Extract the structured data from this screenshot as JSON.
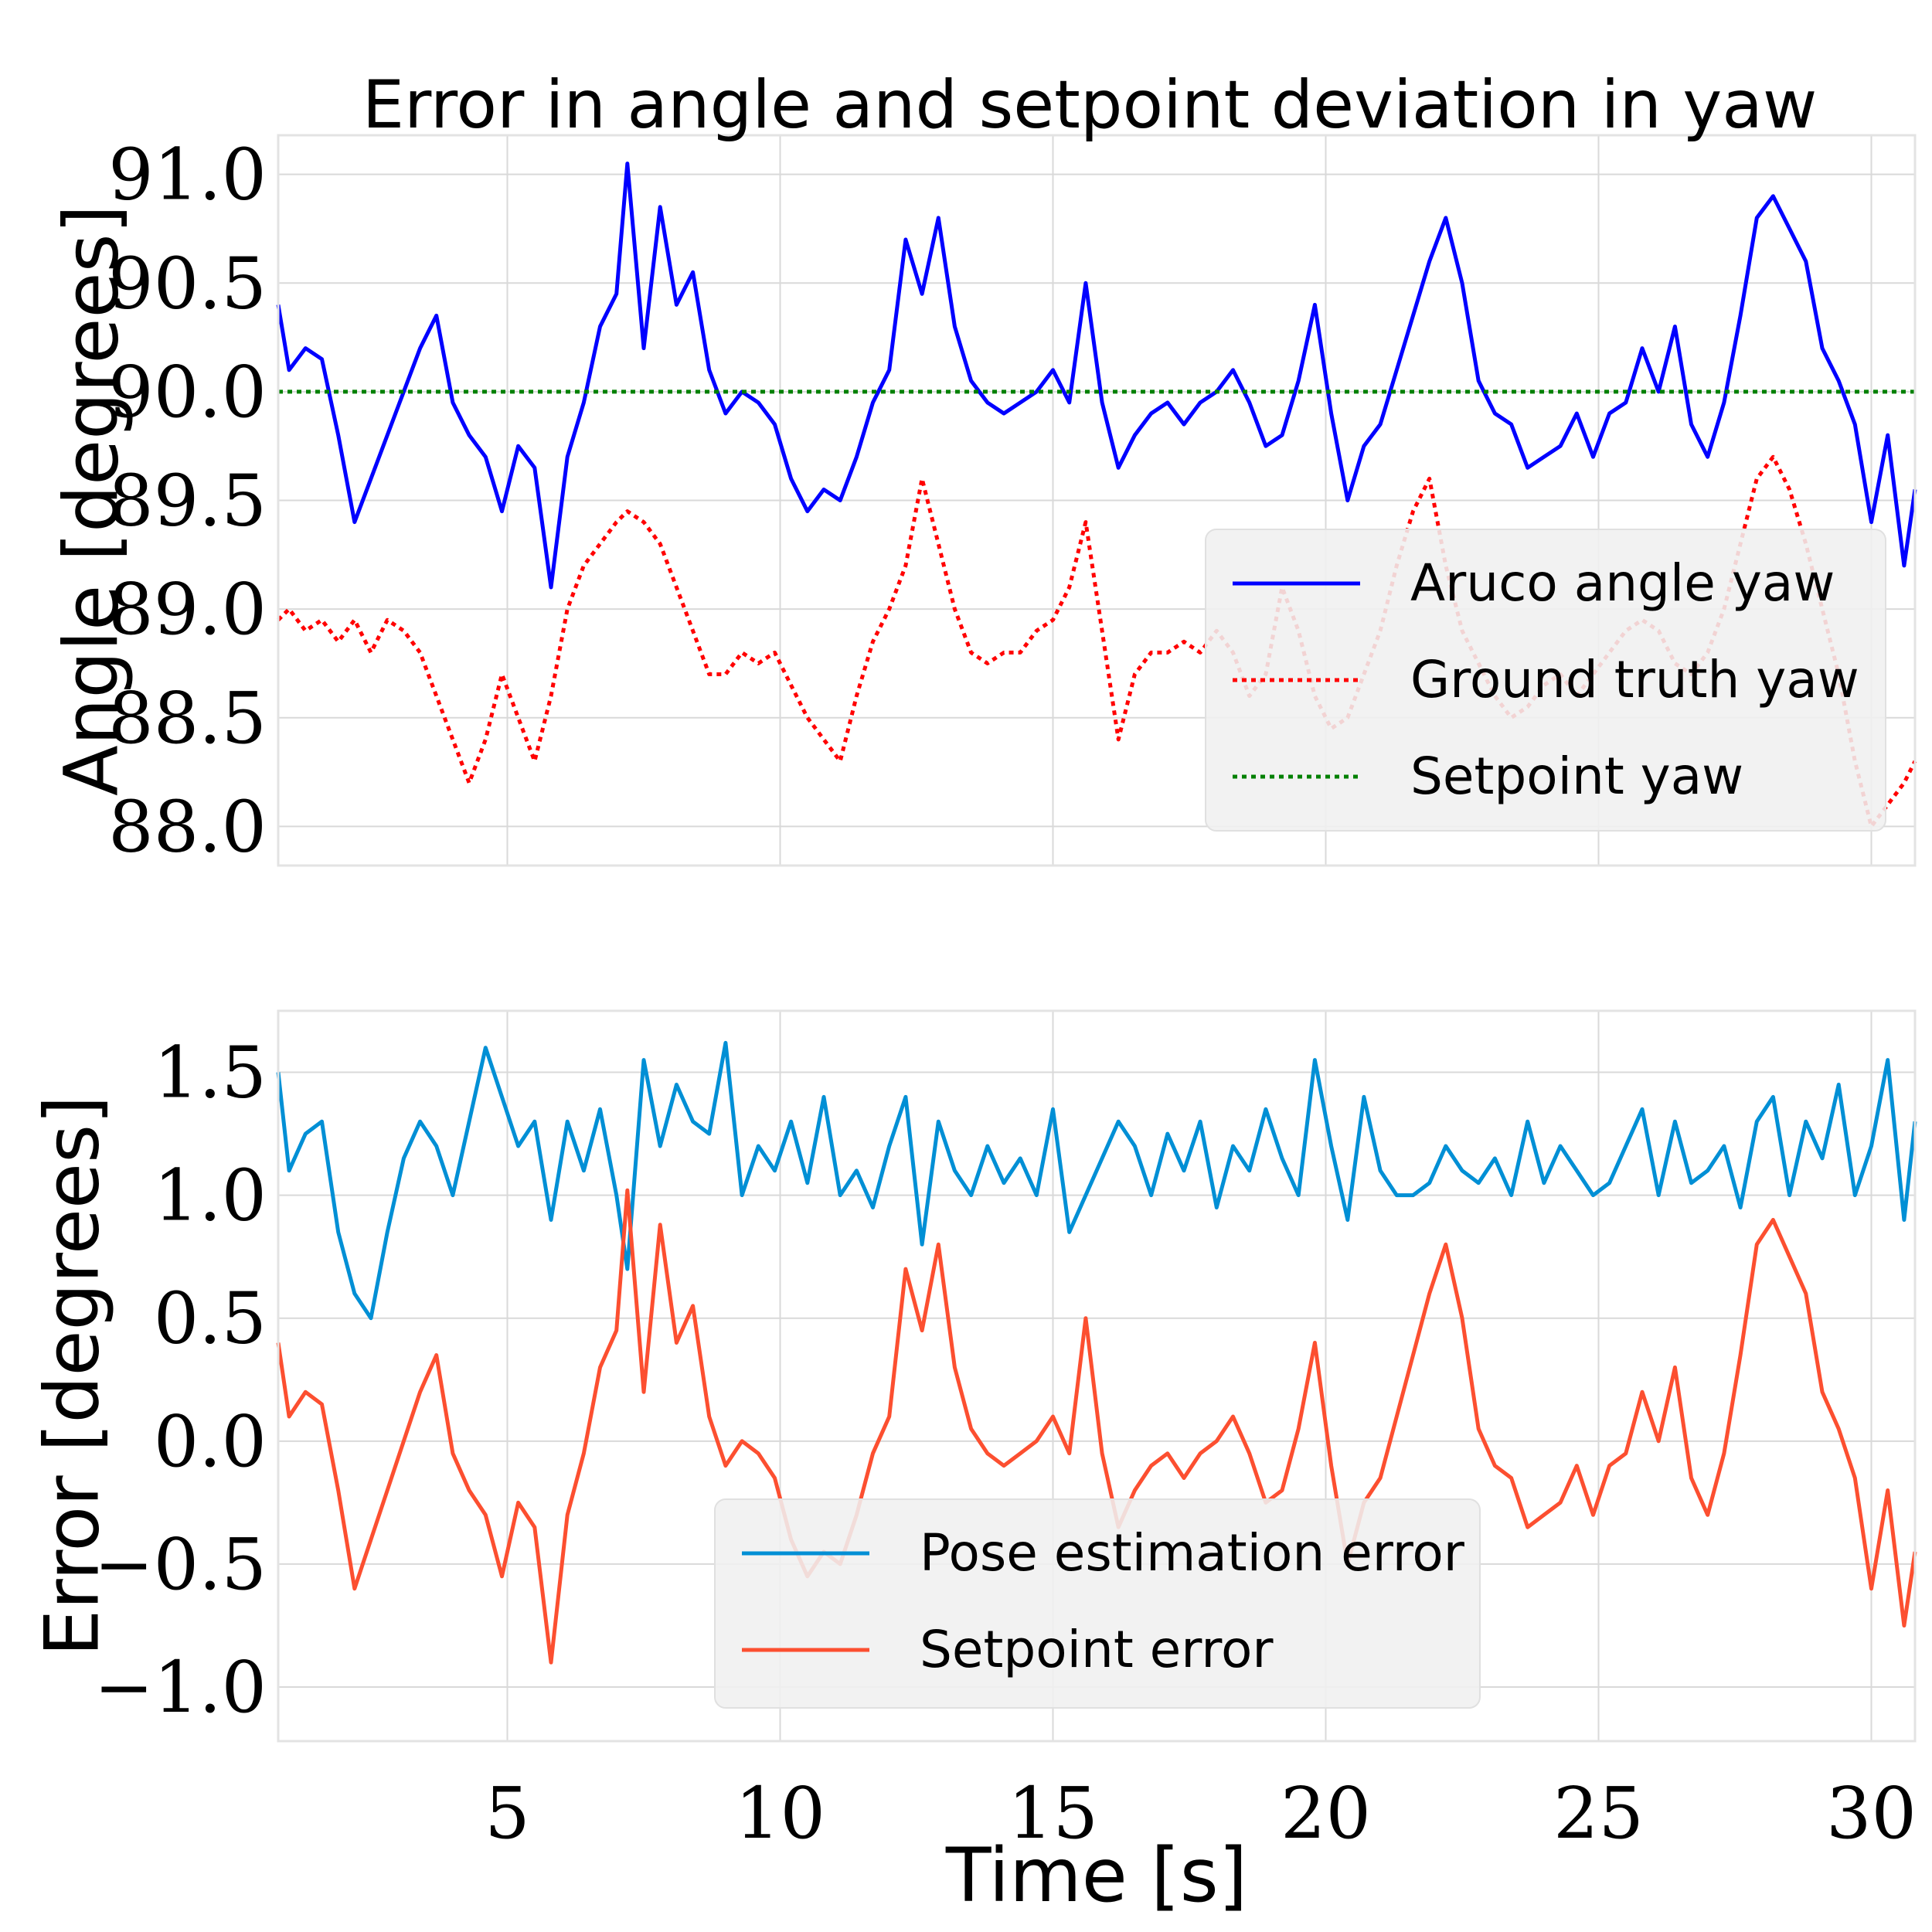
{
  "chart_data": [
    {
      "type": "line",
      "title": "Error in angle and setpoint deviation in yaw",
      "xlabel": "",
      "ylabel": "Angle [degrees]",
      "xlim": [
        0.8,
        30.8
      ],
      "ylim": [
        87.82,
        91.18
      ],
      "xticks": [
        5,
        10,
        15,
        20,
        25,
        30
      ],
      "xtick_labels": [
        "",
        "",
        "",
        "",
        "",
        ""
      ],
      "yticks": [
        88.0,
        88.5,
        89.0,
        89.5,
        90.0,
        90.5,
        91.0
      ],
      "ytick_labels": [
        "88.0",
        "88.5",
        "89.0",
        "89.5",
        "90.0",
        "90.5",
        "91.0"
      ],
      "grid": true,
      "legend": "center-right",
      "series": [
        {
          "name": "Aruco angle yaw",
          "color": "#0000ff",
          "style": "solid",
          "x": [
            0.8,
            1.0,
            1.3,
            1.6,
            1.9,
            2.2,
            2.5,
            2.8,
            3.1,
            3.4,
            3.7,
            4.0,
            4.3,
            4.6,
            4.9,
            5.2,
            5.5,
            5.8,
            6.1,
            6.4,
            6.7,
            7.0,
            7.2,
            7.5,
            7.8,
            8.1,
            8.4,
            8.7,
            9.0,
            9.3,
            9.6,
            9.9,
            10.2,
            10.5,
            10.8,
            11.1,
            11.4,
            11.7,
            12.0,
            12.3,
            12.6,
            12.9,
            13.2,
            13.5,
            13.8,
            14.1,
            14.4,
            14.7,
            15.0,
            15.3,
            15.6,
            15.9,
            16.2,
            16.5,
            16.8,
            17.1,
            17.4,
            17.7,
            18.0,
            18.3,
            18.6,
            18.9,
            19.2,
            19.5,
            19.8,
            20.1,
            20.4,
            20.7,
            21.0,
            21.3,
            21.6,
            21.9,
            22.2,
            22.5,
            22.8,
            23.1,
            23.4,
            23.7,
            24.0,
            24.3,
            24.6,
            24.9,
            25.2,
            25.5,
            25.8,
            26.1,
            26.4,
            26.7,
            27.0,
            27.3,
            27.6,
            27.9,
            28.2,
            28.5,
            28.8,
            29.1,
            29.4,
            29.7,
            30.0,
            30.3,
            30.6,
            30.8
          ],
          "y": [
            90.4,
            90.1,
            90.2,
            90.15,
            89.8,
            89.4,
            89.6,
            89.8,
            90.0,
            90.2,
            90.35,
            89.95,
            89.8,
            89.7,
            89.45,
            89.75,
            89.65,
            89.1,
            89.7,
            89.95,
            90.3,
            90.45,
            91.05,
            90.2,
            90.85,
            90.4,
            90.55,
            90.1,
            89.9,
            90.0,
            89.95,
            89.85,
            89.6,
            89.45,
            89.55,
            89.5,
            89.7,
            89.95,
            90.1,
            90.7,
            90.45,
            90.8,
            90.3,
            90.05,
            89.95,
            89.9,
            89.95,
            90.0,
            90.1,
            89.95,
            90.5,
            89.95,
            89.65,
            89.8,
            89.9,
            89.95,
            89.85,
            89.95,
            90.0,
            90.1,
            89.95,
            89.75,
            89.8,
            90.05,
            90.4,
            89.9,
            89.5,
            89.75,
            89.85,
            90.1,
            90.35,
            90.6,
            90.8,
            90.5,
            90.05,
            89.9,
            89.85,
            89.65,
            89.7,
            89.75,
            89.9,
            89.7,
            89.9,
            89.95,
            90.2,
            90.0,
            90.3,
            89.85,
            89.7,
            89.95,
            90.35,
            90.8,
            90.9,
            90.75,
            90.6,
            90.2,
            90.05,
            89.85,
            89.4,
            89.8,
            89.2,
            89.55
          ]
        },
        {
          "name": "Ground truth yaw",
          "color": "#ff0000",
          "style": "dotted",
          "x": [
            0.8,
            1.0,
            1.3,
            1.6,
            1.9,
            2.2,
            2.5,
            2.8,
            3.1,
            3.4,
            3.7,
            4.0,
            4.3,
            4.6,
            4.9,
            5.2,
            5.5,
            5.8,
            6.1,
            6.4,
            6.7,
            7.0,
            7.2,
            7.5,
            7.8,
            8.1,
            8.4,
            8.7,
            9.0,
            9.3,
            9.6,
            9.9,
            10.2,
            10.5,
            10.8,
            11.1,
            11.4,
            11.7,
            12.0,
            12.3,
            12.6,
            12.9,
            13.2,
            13.5,
            13.8,
            14.1,
            14.4,
            14.7,
            15.0,
            15.3,
            15.6,
            15.9,
            16.2,
            16.5,
            16.8,
            17.1,
            17.4,
            17.7,
            18.0,
            18.3,
            18.6,
            18.9,
            19.2,
            19.5,
            19.8,
            20.1,
            20.4,
            20.7,
            21.0,
            21.3,
            21.6,
            21.9,
            22.2,
            22.5,
            22.8,
            23.1,
            23.4,
            23.7,
            24.0,
            24.3,
            24.6,
            24.9,
            25.2,
            25.5,
            25.8,
            26.1,
            26.4,
            26.7,
            27.0,
            27.3,
            27.6,
            27.9,
            28.2,
            28.5,
            28.8,
            29.1,
            29.4,
            29.7,
            30.0,
            30.3,
            30.6,
            30.8
          ],
          "y": [
            88.95,
            89.0,
            88.9,
            88.95,
            88.85,
            88.95,
            88.8,
            88.95,
            88.9,
            88.8,
            88.6,
            88.4,
            88.2,
            88.4,
            88.7,
            88.5,
            88.3,
            88.6,
            89.0,
            89.2,
            89.3,
            89.4,
            89.45,
            89.4,
            89.3,
            89.1,
            88.9,
            88.7,
            88.7,
            88.8,
            88.75,
            88.8,
            88.65,
            88.5,
            88.4,
            88.3,
            88.6,
            88.85,
            89.0,
            89.2,
            89.6,
            89.3,
            89.0,
            88.8,
            88.75,
            88.8,
            88.8,
            88.9,
            88.95,
            89.1,
            89.4,
            88.9,
            88.4,
            88.7,
            88.8,
            88.8,
            88.85,
            88.8,
            88.9,
            88.8,
            88.6,
            88.7,
            89.1,
            88.9,
            88.6,
            88.45,
            88.5,
            88.7,
            88.9,
            89.2,
            89.45,
            89.6,
            89.2,
            88.9,
            88.75,
            88.6,
            88.5,
            88.55,
            88.65,
            88.7,
            88.6,
            88.7,
            88.8,
            88.9,
            88.95,
            88.9,
            88.75,
            88.7,
            88.8,
            89.0,
            89.3,
            89.6,
            89.7,
            89.55,
            89.3,
            89.0,
            88.7,
            88.3,
            88.0,
            88.1,
            88.2,
            88.3
          ]
        },
        {
          "name": "Setpoint yaw",
          "color": "#008000",
          "style": "dotted",
          "x": [
            0.8,
            30.8
          ],
          "y": [
            90.0,
            90.0
          ]
        }
      ]
    },
    {
      "type": "line",
      "title": "",
      "xlabel": "Time [s]",
      "ylabel": "Error [degrees]",
      "xlim": [
        0.8,
        30.8
      ],
      "ylim": [
        -1.22,
        1.75
      ],
      "xticks": [
        5,
        10,
        15,
        20,
        25,
        30
      ],
      "xtick_labels": [
        "5",
        "10",
        "15",
        "20",
        "25",
        "30"
      ],
      "yticks": [
        -1.0,
        -0.5,
        0.0,
        0.5,
        1.0,
        1.5
      ],
      "ytick_labels": [
        "−1.0",
        "−0.5",
        "0.0",
        "0.5",
        "1.0",
        "1.5"
      ],
      "grid": true,
      "legend": "lower-center",
      "series": [
        {
          "name": "Pose estimation error",
          "color": "#008fd5",
          "style": "solid",
          "x": [
            0.8,
            1.0,
            1.3,
            1.6,
            1.9,
            2.2,
            2.5,
            2.8,
            3.1,
            3.4,
            3.7,
            4.0,
            4.3,
            4.6,
            4.9,
            5.2,
            5.5,
            5.8,
            6.1,
            6.4,
            6.7,
            7.0,
            7.2,
            7.5,
            7.8,
            8.1,
            8.4,
            8.7,
            9.0,
            9.3,
            9.6,
            9.9,
            10.2,
            10.5,
            10.8,
            11.1,
            11.4,
            11.7,
            12.0,
            12.3,
            12.6,
            12.9,
            13.2,
            13.5,
            13.8,
            14.1,
            14.4,
            14.7,
            15.0,
            15.3,
            15.6,
            15.9,
            16.2,
            16.5,
            16.8,
            17.1,
            17.4,
            17.7,
            18.0,
            18.3,
            18.6,
            18.9,
            19.2,
            19.5,
            19.8,
            20.1,
            20.4,
            20.7,
            21.0,
            21.3,
            21.6,
            21.9,
            22.2,
            22.5,
            22.8,
            23.1,
            23.4,
            23.7,
            24.0,
            24.3,
            24.6,
            24.9,
            25.2,
            25.5,
            25.8,
            26.1,
            26.4,
            26.7,
            27.0,
            27.3,
            27.6,
            27.9,
            28.2,
            28.5,
            28.8,
            29.1,
            29.4,
            29.7,
            30.0,
            30.3,
            30.6,
            30.8
          ],
          "y": [
            1.5,
            1.1,
            1.25,
            1.3,
            0.85,
            0.6,
            0.5,
            0.85,
            1.15,
            1.3,
            1.2,
            1.0,
            1.3,
            1.6,
            1.4,
            1.2,
            1.3,
            0.9,
            1.3,
            1.1,
            1.35,
            1.0,
            0.7,
            1.55,
            1.2,
            1.45,
            1.3,
            1.25,
            1.62,
            1.0,
            1.2,
            1.1,
            1.3,
            1.05,
            1.4,
            1.0,
            1.1,
            0.95,
            1.2,
            1.4,
            0.8,
            1.3,
            1.1,
            1.0,
            1.2,
            1.05,
            1.15,
            1.0,
            1.35,
            0.85,
            1.0,
            1.15,
            1.3,
            1.2,
            1.0,
            1.25,
            1.1,
            1.3,
            0.95,
            1.2,
            1.1,
            1.35,
            1.15,
            1.0,
            1.55,
            1.2,
            0.9,
            1.4,
            1.1,
            1.0,
            1.0,
            1.05,
            1.2,
            1.1,
            1.05,
            1.15,
            1.0,
            1.3,
            1.05,
            1.2,
            1.1,
            1.0,
            1.05,
            1.2,
            1.35,
            1.0,
            1.3,
            1.05,
            1.1,
            1.2,
            0.95,
            1.3,
            1.4,
            1.0,
            1.3,
            1.15,
            1.45,
            1.0,
            1.2,
            1.55,
            0.9,
            1.3
          ]
        },
        {
          "name": "Setpoint error",
          "color": "#fc4f30",
          "style": "solid",
          "x": [
            0.8,
            1.0,
            1.3,
            1.6,
            1.9,
            2.2,
            2.5,
            2.8,
            3.1,
            3.4,
            3.7,
            4.0,
            4.3,
            4.6,
            4.9,
            5.2,
            5.5,
            5.8,
            6.1,
            6.4,
            6.7,
            7.0,
            7.2,
            7.5,
            7.8,
            8.1,
            8.4,
            8.7,
            9.0,
            9.3,
            9.6,
            9.9,
            10.2,
            10.5,
            10.8,
            11.1,
            11.4,
            11.7,
            12.0,
            12.3,
            12.6,
            12.9,
            13.2,
            13.5,
            13.8,
            14.1,
            14.4,
            14.7,
            15.0,
            15.3,
            15.6,
            15.9,
            16.2,
            16.5,
            16.8,
            17.1,
            17.4,
            17.7,
            18.0,
            18.3,
            18.6,
            18.9,
            19.2,
            19.5,
            19.8,
            20.1,
            20.4,
            20.7,
            21.0,
            21.3,
            21.6,
            21.9,
            22.2,
            22.5,
            22.8,
            23.1,
            23.4,
            23.7,
            24.0,
            24.3,
            24.6,
            24.9,
            25.2,
            25.5,
            25.8,
            26.1,
            26.4,
            26.7,
            27.0,
            27.3,
            27.6,
            27.9,
            28.2,
            28.5,
            28.8,
            29.1,
            29.4,
            29.7,
            30.0,
            30.3,
            30.6,
            30.8
          ],
          "y": [
            0.4,
            0.1,
            0.2,
            0.15,
            -0.2,
            -0.6,
            -0.4,
            -0.2,
            0.0,
            0.2,
            0.35,
            -0.05,
            -0.2,
            -0.3,
            -0.55,
            -0.25,
            -0.35,
            -0.9,
            -0.3,
            -0.05,
            0.3,
            0.45,
            1.02,
            0.2,
            0.88,
            0.4,
            0.55,
            0.1,
            -0.1,
            0.0,
            -0.05,
            -0.15,
            -0.4,
            -0.55,
            -0.45,
            -0.5,
            -0.3,
            -0.05,
            0.1,
            0.7,
            0.45,
            0.8,
            0.3,
            0.05,
            -0.05,
            -0.1,
            -0.05,
            0.0,
            0.1,
            -0.05,
            0.5,
            -0.05,
            -0.35,
            -0.2,
            -0.1,
            -0.05,
            -0.15,
            -0.05,
            0.0,
            0.1,
            -0.05,
            -0.25,
            -0.2,
            0.05,
            0.4,
            -0.1,
            -0.5,
            -0.25,
            -0.15,
            0.1,
            0.35,
            0.6,
            0.8,
            0.5,
            0.05,
            -0.1,
            -0.15,
            -0.35,
            -0.3,
            -0.25,
            -0.1,
            -0.3,
            -0.1,
            -0.05,
            0.2,
            0.0,
            0.3,
            -0.15,
            -0.3,
            -0.05,
            0.35,
            0.8,
            0.9,
            0.75,
            0.6,
            0.2,
            0.05,
            -0.15,
            -0.6,
            -0.2,
            -0.75,
            -0.45
          ]
        }
      ]
    }
  ]
}
